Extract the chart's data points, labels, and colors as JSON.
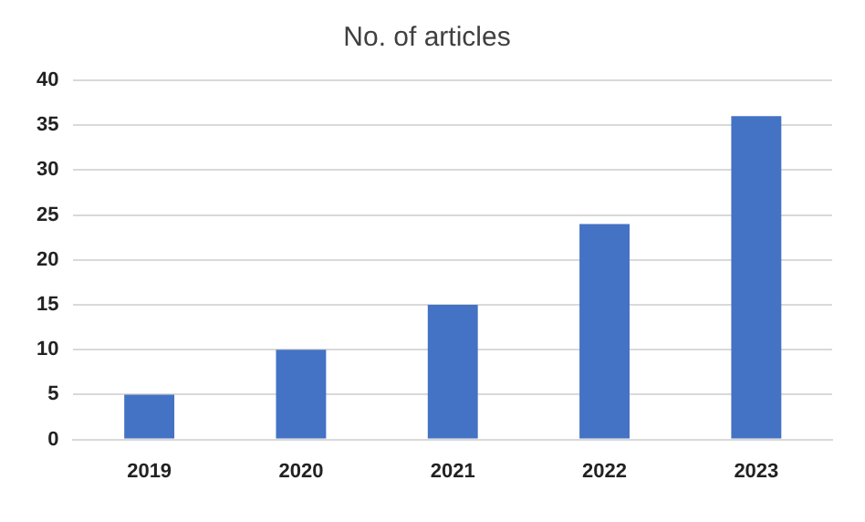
{
  "chart_data": {
    "type": "bar",
    "title": "No. of articles",
    "categories": [
      "2019",
      "2020",
      "2021",
      "2022",
      "2023"
    ],
    "values": [
      5,
      10,
      15,
      24,
      36
    ],
    "color": "#4472c4",
    "ylim": [
      0,
      40
    ],
    "yticks": [
      0,
      5,
      10,
      15,
      20,
      25,
      30,
      35,
      40
    ],
    "grid": "y"
  }
}
